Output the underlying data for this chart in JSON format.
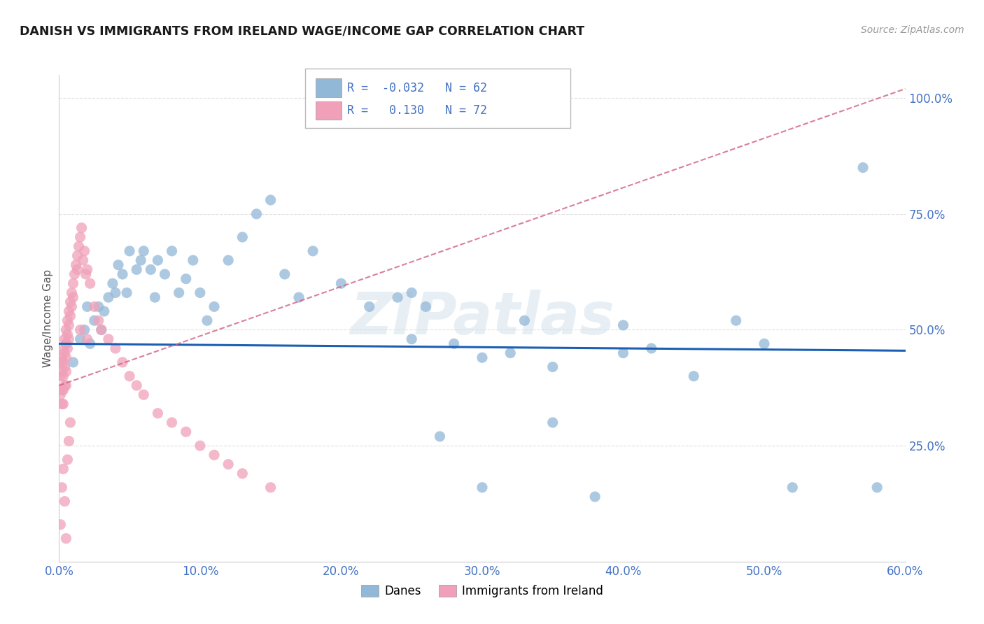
{
  "title": "DANISH VS IMMIGRANTS FROM IRELAND WAGE/INCOME GAP CORRELATION CHART",
  "source": "Source: ZipAtlas.com",
  "ylabel": "Wage/Income Gap",
  "xlim": [
    0.0,
    0.6
  ],
  "ylim": [
    0.0,
    1.05
  ],
  "xtick_labels": [
    "0.0%",
    "",
    "10.0%",
    "",
    "20.0%",
    "",
    "30.0%",
    "",
    "40.0%",
    "",
    "50.0%",
    "",
    "60.0%"
  ],
  "xtick_values": [
    0.0,
    0.05,
    0.1,
    0.15,
    0.2,
    0.25,
    0.3,
    0.35,
    0.4,
    0.45,
    0.5,
    0.55,
    0.6
  ],
  "ytick_labels": [
    "25.0%",
    "50.0%",
    "75.0%",
    "100.0%"
  ],
  "ytick_values": [
    0.25,
    0.5,
    0.75,
    1.0
  ],
  "legend_blue_label": "Danes",
  "legend_pink_label": "Immigrants from Ireland",
  "R_blue": "-0.032",
  "N_blue": "62",
  "R_pink": "0.130",
  "N_pink": "72",
  "blue_color": "#92b8d8",
  "pink_color": "#f0a0b8",
  "blue_line_color": "#1a5fb4",
  "pink_line_color": "#d06080",
  "watermark_text": "ZIPatlas",
  "background_color": "#ffffff",
  "grid_color": "#e0e0e0",
  "blue_scatter_x": [
    0.005,
    0.01,
    0.015,
    0.018,
    0.02,
    0.022,
    0.025,
    0.028,
    0.03,
    0.032,
    0.035,
    0.038,
    0.04,
    0.042,
    0.045,
    0.048,
    0.05,
    0.055,
    0.058,
    0.06,
    0.065,
    0.068,
    0.07,
    0.075,
    0.08,
    0.085,
    0.09,
    0.095,
    0.1,
    0.105,
    0.11,
    0.12,
    0.13,
    0.14,
    0.15,
    0.16,
    0.17,
    0.18,
    0.2,
    0.22,
    0.24,
    0.25,
    0.26,
    0.27,
    0.28,
    0.3,
    0.32,
    0.33,
    0.35,
    0.38,
    0.4,
    0.42,
    0.45,
    0.48,
    0.5,
    0.52,
    0.25,
    0.3,
    0.35,
    0.4,
    0.57,
    0.58
  ],
  "blue_scatter_y": [
    0.47,
    0.43,
    0.48,
    0.5,
    0.55,
    0.47,
    0.52,
    0.55,
    0.5,
    0.54,
    0.57,
    0.6,
    0.58,
    0.64,
    0.62,
    0.58,
    0.67,
    0.63,
    0.65,
    0.67,
    0.63,
    0.57,
    0.65,
    0.62,
    0.67,
    0.58,
    0.61,
    0.65,
    0.58,
    0.52,
    0.55,
    0.65,
    0.7,
    0.75,
    0.78,
    0.62,
    0.57,
    0.67,
    0.6,
    0.55,
    0.57,
    0.58,
    0.55,
    0.27,
    0.47,
    0.16,
    0.45,
    0.52,
    0.3,
    0.14,
    0.45,
    0.46,
    0.4,
    0.52,
    0.47,
    0.16,
    0.48,
    0.44,
    0.42,
    0.51,
    0.85,
    0.16
  ],
  "pink_scatter_x": [
    0.001,
    0.001,
    0.001,
    0.002,
    0.002,
    0.002,
    0.002,
    0.003,
    0.003,
    0.003,
    0.003,
    0.003,
    0.004,
    0.004,
    0.004,
    0.004,
    0.005,
    0.005,
    0.005,
    0.005,
    0.005,
    0.006,
    0.006,
    0.006,
    0.007,
    0.007,
    0.007,
    0.008,
    0.008,
    0.009,
    0.009,
    0.01,
    0.01,
    0.011,
    0.012,
    0.013,
    0.013,
    0.014,
    0.015,
    0.016,
    0.017,
    0.018,
    0.019,
    0.02,
    0.022,
    0.025,
    0.028,
    0.03,
    0.035,
    0.04,
    0.045,
    0.05,
    0.055,
    0.06,
    0.07,
    0.08,
    0.09,
    0.1,
    0.11,
    0.12,
    0.13,
    0.15,
    0.001,
    0.002,
    0.003,
    0.004,
    0.005,
    0.006,
    0.007,
    0.008,
    0.015,
    0.02
  ],
  "pink_scatter_y": [
    0.43,
    0.4,
    0.36,
    0.44,
    0.41,
    0.37,
    0.34,
    0.46,
    0.43,
    0.4,
    0.37,
    0.34,
    0.48,
    0.45,
    0.42,
    0.38,
    0.5,
    0.47,
    0.44,
    0.41,
    0.38,
    0.52,
    0.49,
    0.46,
    0.54,
    0.51,
    0.48,
    0.56,
    0.53,
    0.58,
    0.55,
    0.6,
    0.57,
    0.62,
    0.64,
    0.66,
    0.63,
    0.68,
    0.7,
    0.72,
    0.65,
    0.67,
    0.62,
    0.63,
    0.6,
    0.55,
    0.52,
    0.5,
    0.48,
    0.46,
    0.43,
    0.4,
    0.38,
    0.36,
    0.32,
    0.3,
    0.28,
    0.25,
    0.23,
    0.21,
    0.19,
    0.16,
    0.08,
    0.16,
    0.2,
    0.13,
    0.05,
    0.22,
    0.26,
    0.3,
    0.5,
    0.48
  ]
}
